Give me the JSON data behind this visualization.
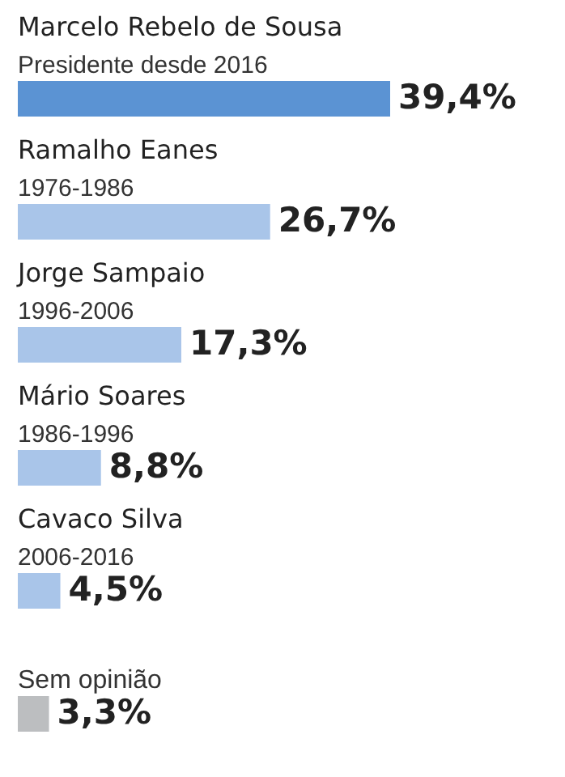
{
  "chart_data": {
    "type": "bar",
    "orientation": "horizontal",
    "categories": [
      "Marcelo Rebelo de Sousa\nPresidente desde 2016",
      "Ramalho Eanes\n1976-1986",
      "Jorge Sampaio\n1996-2006",
      "Mário Soares\n1986-1996",
      "Cavaco Silva\n2006-2016",
      "Sem opinião"
    ],
    "values": [
      39.4,
      26.7,
      17.3,
      8.8,
      4.5,
      3.3
    ],
    "value_labels": [
      "39,4%",
      "26,7%",
      "17,3%",
      "8,8%",
      "4,5%",
      "3,3%"
    ],
    "colors": [
      "#5b93d3",
      "#a9c5e9",
      "#a9c5e9",
      "#a9c5e9",
      "#a9c5e9",
      "#bcbec0"
    ]
  }
}
